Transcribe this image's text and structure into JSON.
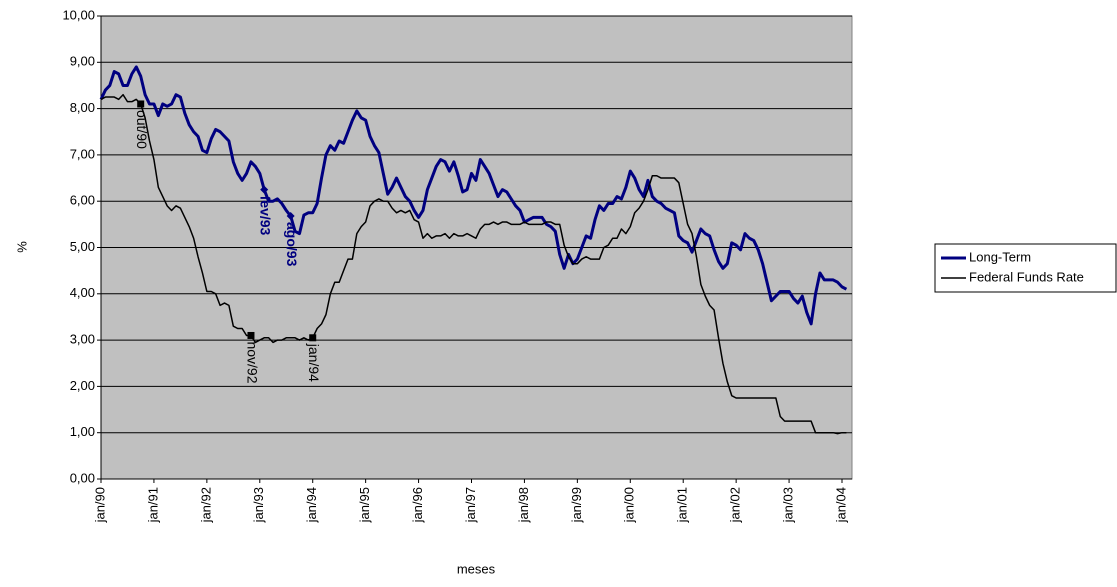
{
  "chart_data": {
    "type": "line",
    "x_label": "meses",
    "y_label": "%",
    "categories": [
      "jan/90",
      null,
      null,
      null,
      null,
      null,
      null,
      null,
      null,
      null,
      null,
      null,
      "jan/91",
      null,
      null,
      null,
      null,
      null,
      null,
      null,
      null,
      null,
      null,
      null,
      "jan/92",
      null,
      null,
      null,
      null,
      null,
      null,
      null,
      null,
      null,
      null,
      null,
      "jan/93",
      null,
      null,
      null,
      null,
      null,
      null,
      null,
      null,
      null,
      null,
      null,
      "jan/94",
      null,
      null,
      null,
      null,
      null,
      null,
      null,
      null,
      null,
      null,
      null,
      "jan/95",
      null,
      null,
      null,
      null,
      null,
      null,
      null,
      null,
      null,
      null,
      null,
      "jan/96",
      null,
      null,
      null,
      null,
      null,
      null,
      null,
      null,
      null,
      null,
      null,
      "jan/97",
      null,
      null,
      null,
      null,
      null,
      null,
      null,
      null,
      null,
      null,
      null,
      "jan/98",
      null,
      null,
      null,
      null,
      null,
      null,
      null,
      null,
      null,
      null,
      null,
      "jan/99",
      null,
      null,
      null,
      null,
      null,
      null,
      null,
      null,
      null,
      null,
      null,
      "jan/00",
      null,
      null,
      null,
      null,
      null,
      null,
      null,
      null,
      null,
      null,
      null,
      "jan/01",
      null,
      null,
      null,
      null,
      null,
      null,
      null,
      null,
      null,
      null,
      null,
      "jan/02",
      null,
      null,
      null,
      null,
      null,
      null,
      null,
      null,
      null,
      null,
      null,
      "jan/03",
      null,
      null,
      null,
      null,
      null,
      null,
      null,
      null,
      null,
      null,
      null,
      "jan/04",
      null
    ],
    "series": [
      {
        "name": "Long-Term",
        "color": "#000080",
        "width": 3,
        "values": [
          8.2,
          8.4,
          8.5,
          8.8,
          8.75,
          8.5,
          8.5,
          8.75,
          8.9,
          8.7,
          8.3,
          8.1,
          8.1,
          7.85,
          8.1,
          8.05,
          8.1,
          8.3,
          8.25,
          7.9,
          7.65,
          7.5,
          7.4,
          7.1,
          7.05,
          7.35,
          7.55,
          7.5,
          7.4,
          7.3,
          6.85,
          6.6,
          6.45,
          6.6,
          6.85,
          6.75,
          6.6,
          6.25,
          6.0,
          6.0,
          6.05,
          5.95,
          5.8,
          5.68,
          5.35,
          5.3,
          5.7,
          5.75,
          5.75,
          5.95,
          6.5,
          7.0,
          7.2,
          7.1,
          7.3,
          7.25,
          7.5,
          7.75,
          7.95,
          7.8,
          7.75,
          7.4,
          7.2,
          7.05,
          6.6,
          6.15,
          6.3,
          6.5,
          6.3,
          6.1,
          6.0,
          5.8,
          5.65,
          5.8,
          6.25,
          6.5,
          6.75,
          6.9,
          6.85,
          6.65,
          6.85,
          6.55,
          6.2,
          6.25,
          6.6,
          6.45,
          6.9,
          6.75,
          6.6,
          6.35,
          6.1,
          6.25,
          6.2,
          6.05,
          5.9,
          5.8,
          5.55,
          5.6,
          5.65,
          5.65,
          5.65,
          5.5,
          5.45,
          5.35,
          4.85,
          4.55,
          4.85,
          4.65,
          4.75,
          5.0,
          5.25,
          5.2,
          5.6,
          5.9,
          5.8,
          5.95,
          5.95,
          6.1,
          6.05,
          6.3,
          6.65,
          6.5,
          6.25,
          6.1,
          6.45,
          6.1,
          6.0,
          5.95,
          5.85,
          5.8,
          5.75,
          5.25,
          5.15,
          5.1,
          4.9,
          5.15,
          5.4,
          5.3,
          5.25,
          4.95,
          4.7,
          4.55,
          4.65,
          5.1,
          5.05,
          4.95,
          5.3,
          5.2,
          5.15,
          4.95,
          4.65,
          4.25,
          3.85,
          3.95,
          4.05,
          4.05,
          4.05,
          3.9,
          3.8,
          3.95,
          3.6,
          3.35,
          4.0,
          4.45,
          4.3,
          4.3,
          4.3,
          4.25,
          4.15,
          4.1
        ]
      },
      {
        "name": "Federal Funds Rate",
        "color": "#000000",
        "width": 1.5,
        "values": [
          8.2,
          8.25,
          8.25,
          8.25,
          8.2,
          8.3,
          8.15,
          8.15,
          8.2,
          8.1,
          7.8,
          7.3,
          6.9,
          6.3,
          6.1,
          5.9,
          5.8,
          5.9,
          5.85,
          5.65,
          5.45,
          5.2,
          4.8,
          4.45,
          4.05,
          4.05,
          4.0,
          3.75,
          3.8,
          3.75,
          3.3,
          3.25,
          3.25,
          3.1,
          3.1,
          2.95,
          3.0,
          3.05,
          3.05,
          2.95,
          3.0,
          3.0,
          3.05,
          3.05,
          3.05,
          3.0,
          3.05,
          3.0,
          3.05,
          3.25,
          3.35,
          3.55,
          4.0,
          4.25,
          4.25,
          4.5,
          4.75,
          4.75,
          5.3,
          5.45,
          5.55,
          5.9,
          6.0,
          6.05,
          6.0,
          6.0,
          5.85,
          5.75,
          5.8,
          5.75,
          5.8,
          5.6,
          5.55,
          5.2,
          5.3,
          5.2,
          5.25,
          5.25,
          5.3,
          5.2,
          5.3,
          5.25,
          5.25,
          5.3,
          5.25,
          5.2,
          5.4,
          5.5,
          5.5,
          5.55,
          5.5,
          5.55,
          5.55,
          5.5,
          5.5,
          5.5,
          5.55,
          5.5,
          5.5,
          5.5,
          5.5,
          5.55,
          5.55,
          5.5,
          5.5,
          5.05,
          4.8,
          4.65,
          4.65,
          4.75,
          4.8,
          4.75,
          4.75,
          4.75,
          5.0,
          5.05,
          5.2,
          5.2,
          5.4,
          5.3,
          5.45,
          5.75,
          5.85,
          6.0,
          6.25,
          6.55,
          6.55,
          6.5,
          6.5,
          6.5,
          6.5,
          6.4,
          5.95,
          5.5,
          5.3,
          4.8,
          4.2,
          3.95,
          3.75,
          3.65,
          3.05,
          2.5,
          2.1,
          1.8,
          1.75,
          1.75,
          1.75,
          1.75,
          1.75,
          1.75,
          1.75,
          1.75,
          1.75,
          1.75,
          1.35,
          1.25,
          1.25,
          1.25,
          1.25,
          1.25,
          1.25,
          1.25,
          1.0,
          1.0,
          1.0,
          1.0,
          1.0,
          0.98,
          1.0,
          1.0
        ]
      }
    ],
    "annotations": [
      {
        "text": "out/90",
        "series": 1,
        "index": 9
      },
      {
        "text": "nov/92",
        "series": 1,
        "index": 34
      },
      {
        "text": "jan/94",
        "series": 1,
        "index": 48
      },
      {
        "text": "fev/93",
        "series": 0,
        "index": 37
      },
      {
        "text": "ago/93",
        "series": 0,
        "index": 43
      }
    ],
    "ylim": [
      0,
      10
    ],
    "yticks": [
      {
        "value": 0,
        "label": "0,00"
      },
      {
        "value": 1,
        "label": "1,00"
      },
      {
        "value": 2,
        "label": "2,00"
      },
      {
        "value": 3,
        "label": "3,00"
      },
      {
        "value": 4,
        "label": "4,00"
      },
      {
        "value": 5,
        "label": "5,00"
      },
      {
        "value": 6,
        "label": "6,00"
      },
      {
        "value": 7,
        "label": "7,00"
      },
      {
        "value": 8,
        "label": "8,00"
      },
      {
        "value": 9,
        "label": "9,00"
      },
      {
        "value": 10,
        "label": "10,00"
      }
    ],
    "grid": true,
    "plot_background": "#c0c0c0",
    "legend": "right"
  }
}
